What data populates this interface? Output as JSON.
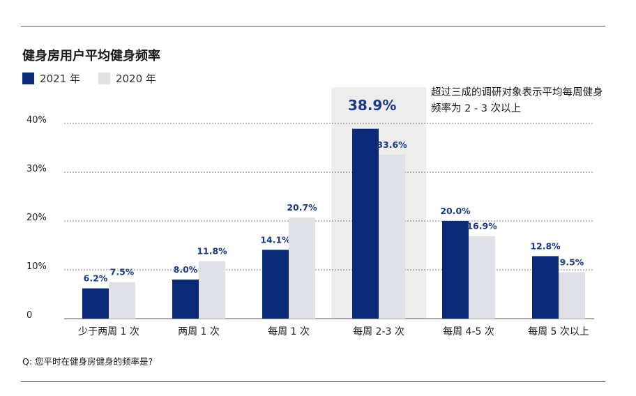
{
  "chart_data": {
    "type": "bar",
    "title": "健身房用户平均健身频率",
    "categories": [
      "少于两周 1 次",
      "两周 1 次",
      "每周 1 次",
      "每周 2-3 次",
      "每周 4-5 次",
      "每周 5 次以上"
    ],
    "series": [
      {
        "name": "2021 年",
        "color": "#0a2a78",
        "values": [
          6.2,
          8.0,
          14.1,
          38.9,
          20.0,
          12.8
        ],
        "labels": [
          "6.2%",
          "8.0%",
          "14.1%",
          "38.9%",
          "20.0%",
          "12.8%"
        ]
      },
      {
        "name": "2020 年",
        "color": "#e0e1e6",
        "values": [
          7.5,
          11.8,
          20.7,
          33.6,
          16.9,
          9.5
        ],
        "labels": [
          "7.5%",
          "11.8%",
          "20.7%",
          "33.6%",
          "16.9%",
          "9.5%"
        ]
      }
    ],
    "y_ticks": [
      "0",
      "10%",
      "20%",
      "30%",
      "40%"
    ],
    "y_tick_values": [
      0,
      10,
      20,
      30,
      40
    ],
    "ylim": [
      0,
      40
    ],
    "grid": true,
    "highlight_category": 3,
    "annotation": "超过三成的调研对象表示平均每周健身频率为 2 - 3 次以上",
    "footnote": "Q: 您平时在健身房健身的频率是?",
    "legend_position": "top-left"
  },
  "colors": {
    "label": "#1a3a8a",
    "grid": "#555555",
    "highlight_bg": "#eeeeef"
  }
}
